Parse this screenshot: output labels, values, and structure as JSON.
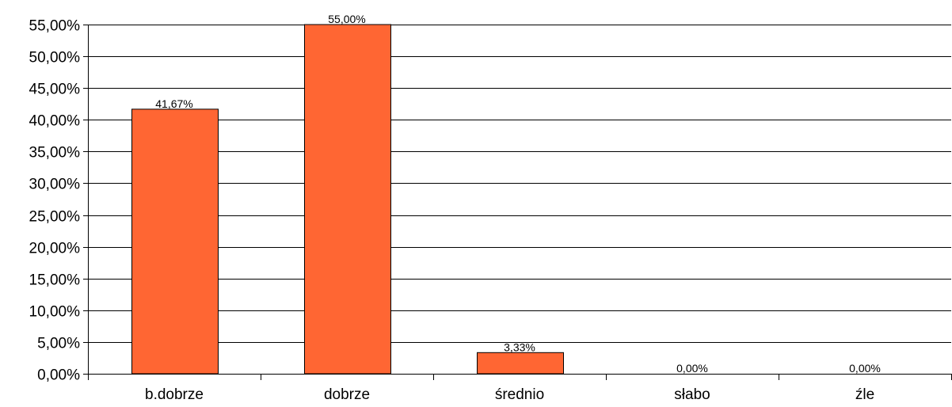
{
  "chart_data": {
    "type": "bar",
    "categories": [
      "b.dobrze",
      "dobrze",
      "średnio",
      "słabo",
      "źle"
    ],
    "values": [
      41.67,
      55.0,
      3.33,
      0.0,
      0.0
    ],
    "data_labels": [
      "41,67%",
      "55,00%",
      "3,33%",
      "0,00%",
      "0,00%"
    ],
    "y_ticks": [
      0,
      5,
      10,
      15,
      20,
      25,
      30,
      35,
      40,
      45,
      50,
      55
    ],
    "y_tick_labels": [
      "0,00%",
      "5,00%",
      "10,00%",
      "15,00%",
      "20,00%",
      "25,00%",
      "30,00%",
      "35,00%",
      "40,00%",
      "45,00%",
      "50,00%",
      "55,00%"
    ],
    "ylim": [
      0,
      55
    ],
    "grid": true,
    "legend": "none",
    "bar_color": "#ff6633",
    "title": "",
    "xlabel": "",
    "ylabel": ""
  }
}
